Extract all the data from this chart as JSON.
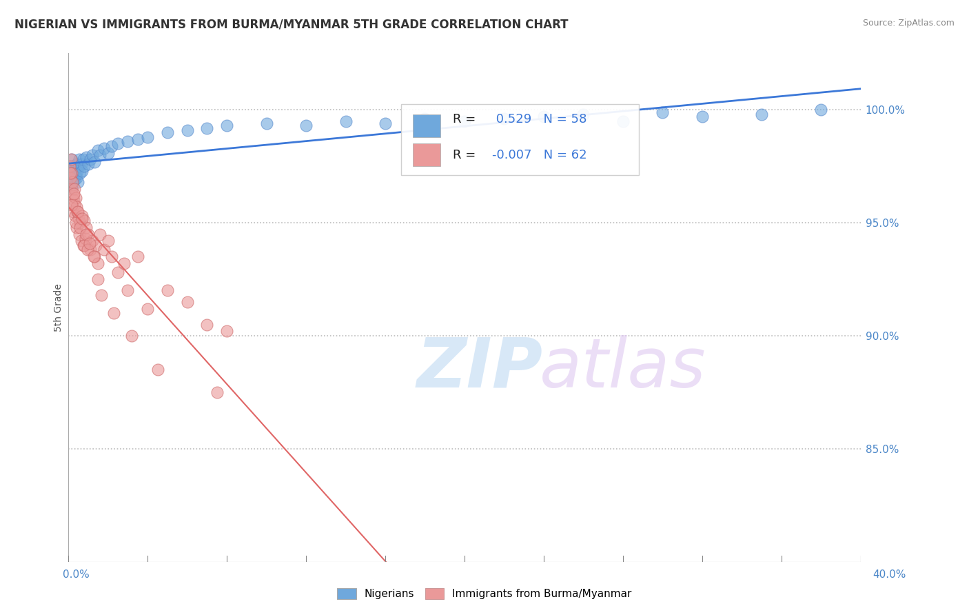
{
  "title": "NIGERIAN VS IMMIGRANTS FROM BURMA/MYANMAR 5TH GRADE CORRELATION CHART",
  "source": "Source: ZipAtlas.com",
  "ylabel": "5th Grade",
  "right_yticks": [
    85.0,
    90.0,
    95.0,
    100.0
  ],
  "right_ytick_labels": [
    "85.0%",
    "90.0%",
    "95.0%",
    "100.0%"
  ],
  "xmin": 0.0,
  "xmax": 40.0,
  "ymin": 80.0,
  "ymax": 102.5,
  "legend_items": [
    "Nigerians",
    "Immigrants from Burma/Myanmar"
  ],
  "R_nigerian": 0.529,
  "N_nigerian": 58,
  "R_burma": -0.007,
  "N_burma": 62,
  "dotted_line_y1": 100.0,
  "dotted_line_y2": 95.0,
  "dotted_line_y3": 90.0,
  "dotted_line_y4": 85.0,
  "blue_color": "#6fa8dc",
  "pink_color": "#ea9999",
  "blue_line_color": "#3c78d8",
  "pink_line_color": "#e06666",
  "background_color": "#ffffff",
  "nigerian_x": [
    0.05,
    0.08,
    0.1,
    0.12,
    0.15,
    0.15,
    0.18,
    0.2,
    0.22,
    0.25,
    0.28,
    0.3,
    0.32,
    0.35,
    0.38,
    0.4,
    0.42,
    0.45,
    0.48,
    0.5,
    0.55,
    0.6,
    0.65,
    0.7,
    0.75,
    0.8,
    0.9,
    1.0,
    1.1,
    1.2,
    1.3,
    1.5,
    1.6,
    1.8,
    2.0,
    2.2,
    2.5,
    3.0,
    3.5,
    4.0,
    5.0,
    6.0,
    7.0,
    8.0,
    10.0,
    12.0,
    14.0,
    16.0,
    18.0,
    20.0,
    22.0,
    24.0,
    26.0,
    28.0,
    30.0,
    32.0,
    35.0,
    38.0
  ],
  "nigerian_y": [
    97.2,
    96.8,
    97.5,
    97.0,
    96.5,
    97.8,
    97.0,
    97.3,
    96.8,
    97.5,
    97.0,
    97.2,
    96.9,
    97.4,
    97.1,
    97.6,
    97.0,
    97.3,
    96.8,
    97.5,
    97.8,
    97.2,
    97.6,
    97.3,
    97.8,
    97.5,
    97.9,
    97.6,
    97.8,
    98.0,
    97.7,
    98.2,
    98.0,
    98.3,
    98.1,
    98.4,
    98.5,
    98.6,
    98.7,
    98.8,
    99.0,
    99.1,
    99.2,
    99.3,
    99.4,
    99.3,
    99.5,
    99.4,
    99.6,
    99.5,
    99.6,
    99.7,
    99.8,
    99.5,
    99.9,
    99.7,
    99.8,
    100.0
  ],
  "burma_x": [
    0.05,
    0.1,
    0.12,
    0.15,
    0.18,
    0.2,
    0.22,
    0.25,
    0.28,
    0.3,
    0.32,
    0.35,
    0.38,
    0.4,
    0.42,
    0.45,
    0.5,
    0.55,
    0.6,
    0.65,
    0.7,
    0.75,
    0.8,
    0.85,
    0.9,
    1.0,
    1.1,
    1.2,
    1.3,
    1.4,
    1.5,
    1.6,
    1.8,
    2.0,
    2.2,
    2.5,
    2.8,
    3.0,
    3.5,
    4.0,
    5.0,
    6.0,
    7.0,
    8.0,
    0.08,
    0.18,
    0.28,
    0.38,
    0.48,
    0.58,
    0.68,
    0.78,
    0.88,
    0.98,
    1.08,
    1.28,
    1.48,
    1.68,
    2.3,
    3.2,
    4.5,
    7.5
  ],
  "burma_y": [
    97.5,
    97.0,
    97.8,
    96.5,
    97.2,
    96.8,
    95.5,
    96.2,
    96.0,
    95.8,
    96.5,
    95.3,
    96.1,
    95.7,
    94.8,
    95.5,
    95.2,
    94.5,
    95.0,
    94.2,
    95.3,
    94.0,
    95.1,
    94.3,
    94.8,
    94.5,
    93.8,
    94.2,
    93.5,
    94.0,
    93.2,
    94.5,
    93.8,
    94.2,
    93.5,
    92.8,
    93.2,
    92.0,
    93.5,
    91.2,
    92.0,
    91.5,
    90.5,
    90.2,
    97.2,
    95.8,
    96.3,
    95.0,
    95.5,
    94.8,
    95.2,
    94.0,
    94.5,
    93.8,
    94.1,
    93.5,
    92.5,
    91.8,
    91.0,
    90.0,
    88.5,
    87.5
  ]
}
